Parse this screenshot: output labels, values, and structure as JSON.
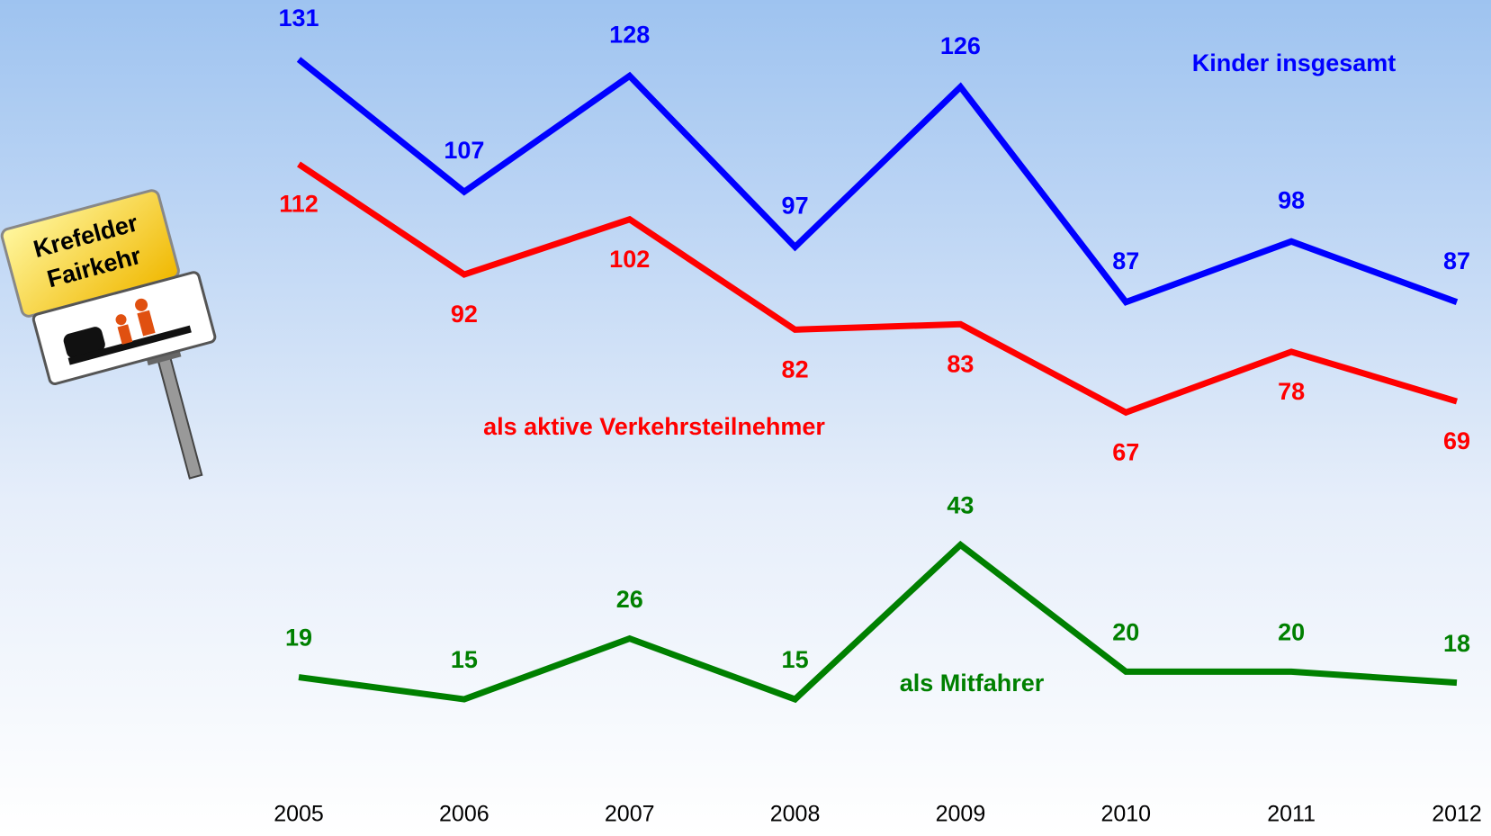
{
  "logo": {
    "lines": [
      "Krefelder",
      "Fairkehr"
    ]
  },
  "chart_data": {
    "type": "line",
    "categories": [
      "2005",
      "2006",
      "2007",
      "2008",
      "2009",
      "2010",
      "2011",
      "2012"
    ],
    "series": [
      {
        "name": "Kinder insgesamt",
        "color": "#0000ff",
        "values": [
          131,
          107,
          128,
          97,
          126,
          87,
          98,
          87
        ]
      },
      {
        "name": "als aktive Verkehrsteilnehmer",
        "color": "#ff0000",
        "values": [
          112,
          92,
          102,
          82,
          83,
          67,
          78,
          69
        ]
      },
      {
        "name": "als Mitfahrer",
        "color": "#008000",
        "values": [
          19,
          15,
          26,
          15,
          43,
          20,
          20,
          18
        ]
      }
    ]
  }
}
